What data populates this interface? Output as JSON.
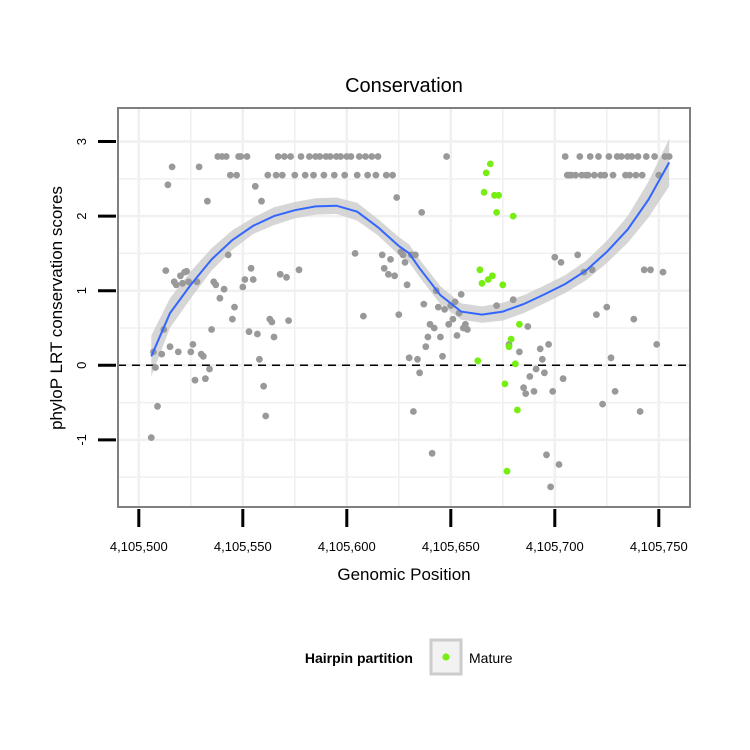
{
  "chart_data": {
    "type": "scatter",
    "title": "Conservation",
    "xlabel": "Genomic Position",
    "ylabel": "phyloP LRT conservation scores",
    "xlim": [
      4105490,
      4105765
    ],
    "ylim": [
      -1.9,
      3.45
    ],
    "xticks": [
      4105500,
      4105550,
      4105600,
      4105650,
      4105700,
      4105750
    ],
    "xtick_labels": [
      "4,105,500",
      "4,105,550",
      "4,105,600",
      "4,105,650",
      "4,105,700",
      "4,105,750"
    ],
    "yticks": [
      -1,
      0,
      1,
      2,
      3
    ],
    "ytick_labels": [
      "-1",
      "0",
      "1",
      "2",
      "3"
    ],
    "grid": true,
    "reference_line": {
      "y": 0,
      "style": "dashed"
    },
    "legend": {
      "title": "Hairpin partition",
      "placement": "bottom",
      "entries": [
        "Mature"
      ]
    },
    "colors": {
      "other_points": "#999999",
      "mature_points": "#77ee11",
      "smooth_line": "#3366ff",
      "confidence_band": "#cccccc",
      "panel_border": "#7f7f7f",
      "grid": "#f0f0f0"
    },
    "series": [
      {
        "name": "",
        "points": [
          [
            4105506,
            -0.97
          ],
          [
            4105507,
            0.18
          ],
          [
            4105508,
            -0.03
          ],
          [
            4105509,
            -0.55
          ],
          [
            4105511,
            0.15
          ],
          [
            4105512,
            0.48
          ],
          [
            4105513,
            1.27
          ],
          [
            4105514,
            2.42
          ],
          [
            4105515,
            0.25
          ],
          [
            4105516,
            2.66
          ],
          [
            4105517,
            1.12
          ],
          [
            4105518,
            1.08
          ],
          [
            4105519,
            0.18
          ],
          [
            4105520,
            1.2
          ],
          [
            4105521,
            1.1
          ],
          [
            4105522,
            1.25
          ],
          [
            4105523,
            1.26
          ],
          [
            4105524,
            1.12
          ],
          [
            4105525,
            0.18
          ],
          [
            4105526,
            0.28
          ],
          [
            4105527,
            -0.2
          ],
          [
            4105528,
            1.12
          ],
          [
            4105529,
            2.66
          ],
          [
            4105530,
            0.15
          ],
          [
            4105531,
            0.12
          ],
          [
            4105532,
            -0.18
          ],
          [
            4105533,
            2.2
          ],
          [
            4105534,
            -0.05
          ],
          [
            4105535,
            0.48
          ],
          [
            4105536,
            1.12
          ],
          [
            4105537,
            1.08
          ],
          [
            4105538,
            2.8
          ],
          [
            4105539,
            0.9
          ],
          [
            4105540,
            2.8
          ],
          [
            4105541,
            1.02
          ],
          [
            4105542,
            2.8
          ],
          [
            4105543,
            1.48
          ],
          [
            4105544,
            2.55
          ],
          [
            4105545,
            0.62
          ],
          [
            4105546,
            0.78
          ],
          [
            4105547,
            2.55
          ],
          [
            4105548,
            2.8
          ],
          [
            4105549,
            2.8
          ],
          [
            4105550,
            1.05
          ],
          [
            4105551,
            1.15
          ],
          [
            4105552,
            2.8
          ],
          [
            4105553,
            0.45
          ],
          [
            4105554,
            1.3
          ],
          [
            4105555,
            1.15
          ],
          [
            4105556,
            2.4
          ],
          [
            4105557,
            0.42
          ],
          [
            4105558,
            0.08
          ],
          [
            4105559,
            2.2
          ],
          [
            4105560,
            -0.28
          ],
          [
            4105561,
            -0.68
          ],
          [
            4105562,
            2.55
          ],
          [
            4105563,
            0.62
          ],
          [
            4105564,
            0.58
          ],
          [
            4105565,
            0.38
          ],
          [
            4105566,
            2.55
          ],
          [
            4105567,
            2.8
          ],
          [
            4105568,
            1.22
          ],
          [
            4105569,
            2.55
          ],
          [
            4105570,
            2.8
          ],
          [
            4105571,
            1.18
          ],
          [
            4105572,
            0.6
          ],
          [
            4105573,
            2.8
          ],
          [
            4105575,
            2.55
          ],
          [
            4105577,
            1.28
          ],
          [
            4105578,
            2.8
          ],
          [
            4105580,
            2.55
          ],
          [
            4105582,
            2.8
          ],
          [
            4105584,
            2.55
          ],
          [
            4105585,
            2.8
          ],
          [
            4105587,
            2.8
          ],
          [
            4105589,
            2.55
          ],
          [
            4105590,
            2.8
          ],
          [
            4105592,
            2.8
          ],
          [
            4105594,
            2.55
          ],
          [
            4105595,
            2.8
          ],
          [
            4105597,
            2.8
          ],
          [
            4105599,
            2.55
          ],
          [
            4105600,
            2.8
          ],
          [
            4105602,
            2.8
          ],
          [
            4105604,
            1.5
          ],
          [
            4105605,
            2.55
          ],
          [
            4105606,
            2.8
          ],
          [
            4105608,
            0.66
          ],
          [
            4105609,
            2.8
          ],
          [
            4105610,
            2.55
          ],
          [
            4105612,
            2.8
          ],
          [
            4105614,
            2.55
          ],
          [
            4105615,
            2.8
          ],
          [
            4105617,
            1.48
          ],
          [
            4105618,
            1.3
          ],
          [
            4105619,
            2.55
          ],
          [
            4105620,
            1.22
          ],
          [
            4105621,
            1.42
          ],
          [
            4105622,
            2.55
          ],
          [
            4105623,
            1.2
          ],
          [
            4105624,
            2.25
          ],
          [
            4105625,
            0.68
          ],
          [
            4105626,
            1.52
          ],
          [
            4105627,
            1.48
          ],
          [
            4105628,
            1.38
          ],
          [
            4105629,
            1.08
          ],
          [
            4105630,
            0.1
          ],
          [
            4105631,
            1.48
          ],
          [
            4105632,
            -0.62
          ],
          [
            4105633,
            1.48
          ],
          [
            4105634,
            0.08
          ],
          [
            4105635,
            -0.1
          ],
          [
            4105636,
            2.05
          ],
          [
            4105637,
            0.82
          ],
          [
            4105638,
            0.25
          ],
          [
            4105639,
            0.38
          ],
          [
            4105640,
            0.55
          ],
          [
            4105641,
            -1.18
          ],
          [
            4105642,
            0.5
          ],
          [
            4105643,
            1.0
          ],
          [
            4105644,
            0.78
          ],
          [
            4105645,
            0.38
          ],
          [
            4105646,
            0.12
          ],
          [
            4105647,
            0.75
          ],
          [
            4105648,
            2.8
          ],
          [
            4105649,
            0.55
          ],
          [
            4105650,
            0.8
          ],
          [
            4105651,
            0.62
          ],
          [
            4105652,
            0.85
          ],
          [
            4105653,
            0.4
          ],
          [
            4105654,
            0.7
          ],
          [
            4105655,
            0.95
          ],
          [
            4105656,
            0.5
          ],
          [
            4105657,
            0.55
          ],
          [
            4105658,
            0.48
          ],
          [
            4105672,
            0.8
          ],
          [
            4105678,
            0.28
          ],
          [
            4105680,
            0.88
          ],
          [
            4105683,
            0.18
          ],
          [
            4105685,
            -0.3
          ],
          [
            4105686,
            -0.38
          ],
          [
            4105687,
            0.52
          ],
          [
            4105688,
            -0.15
          ],
          [
            4105690,
            -0.35
          ],
          [
            4105691,
            -0.05
          ],
          [
            4105693,
            0.22
          ],
          [
            4105694,
            0.08
          ],
          [
            4105695,
            -0.1
          ],
          [
            4105696,
            -1.2
          ],
          [
            4105697,
            0.28
          ],
          [
            4105698,
            -1.63
          ],
          [
            4105699,
            -0.35
          ],
          [
            4105700,
            1.45
          ],
          [
            4105702,
            -1.33
          ],
          [
            4105703,
            1.38
          ],
          [
            4105704,
            -0.18
          ],
          [
            4105705,
            2.8
          ],
          [
            4105706,
            2.55
          ],
          [
            4105707,
            2.55
          ],
          [
            4105708,
            2.55
          ],
          [
            4105710,
            2.55
          ],
          [
            4105711,
            1.48
          ],
          [
            4105712,
            2.8
          ],
          [
            4105713,
            2.55
          ],
          [
            4105714,
            1.25
          ],
          [
            4105715,
            2.55
          ],
          [
            4105716,
            2.55
          ],
          [
            4105717,
            2.8
          ],
          [
            4105718,
            1.28
          ],
          [
            4105719,
            2.55
          ],
          [
            4105720,
            0.68
          ],
          [
            4105721,
            2.8
          ],
          [
            4105722,
            2.55
          ],
          [
            4105723,
            -0.52
          ],
          [
            4105724,
            2.55
          ],
          [
            4105725,
            0.78
          ],
          [
            4105726,
            2.8
          ],
          [
            4105727,
            0.1
          ],
          [
            4105728,
            2.55
          ],
          [
            4105729,
            -0.35
          ],
          [
            4105730,
            2.8
          ],
          [
            4105732,
            2.8
          ],
          [
            4105734,
            2.55
          ],
          [
            4105735,
            2.8
          ],
          [
            4105736,
            2.55
          ],
          [
            4105737,
            2.8
          ],
          [
            4105738,
            0.62
          ],
          [
            4105739,
            2.55
          ],
          [
            4105740,
            2.8
          ],
          [
            4105741,
            -0.62
          ],
          [
            4105742,
            2.55
          ],
          [
            4105743,
            1.28
          ],
          [
            4105744,
            2.8
          ],
          [
            4105746,
            1.28
          ],
          [
            4105748,
            2.8
          ],
          [
            4105749,
            0.28
          ],
          [
            4105750,
            2.55
          ],
          [
            4105752,
            1.25
          ],
          [
            4105753,
            2.8
          ],
          [
            4105755,
            2.8
          ]
        ]
      },
      {
        "name": "Mature",
        "points": [
          [
            4105663,
            0.06
          ],
          [
            4105664,
            1.28
          ],
          [
            4105665,
            1.1
          ],
          [
            4105666,
            2.32
          ],
          [
            4105667,
            2.58
          ],
          [
            4105668,
            1.15
          ],
          [
            4105669,
            2.7
          ],
          [
            4105670,
            1.2
          ],
          [
            4105671,
            2.28
          ],
          [
            4105672,
            2.05
          ],
          [
            4105673,
            2.28
          ],
          [
            4105675,
            1.08
          ],
          [
            4105676,
            -0.25
          ],
          [
            4105677,
            -1.42
          ],
          [
            4105678,
            0.25
          ],
          [
            4105679,
            0.35
          ],
          [
            4105680,
            2.0
          ],
          [
            4105681,
            0.02
          ],
          [
            4105682,
            -0.6
          ],
          [
            4105683,
            0.55
          ]
        ]
      }
    ],
    "smooth_fit": {
      "x": [
        4105506,
        4105515,
        4105525,
        4105535,
        4105545,
        4105555,
        4105565,
        4105575,
        4105585,
        4105595,
        4105605,
        4105615,
        4105625,
        4105630,
        4105635,
        4105645,
        4105655,
        4105665,
        4105675,
        4105685,
        4105695,
        4105705,
        4105715,
        4105725,
        4105735,
        4105745,
        4105755
      ],
      "y": [
        0.12,
        0.7,
        1.08,
        1.42,
        1.68,
        1.87,
        2.0,
        2.08,
        2.13,
        2.14,
        2.06,
        1.85,
        1.6,
        1.5,
        1.3,
        0.94,
        0.72,
        0.68,
        0.72,
        0.82,
        0.95,
        1.09,
        1.27,
        1.52,
        1.82,
        2.22,
        2.72
      ],
      "ci_lower": [
        -0.15,
        0.5,
        0.9,
        1.27,
        1.55,
        1.76,
        1.88,
        1.97,
        2.02,
        2.03,
        1.94,
        1.74,
        1.48,
        1.38,
        1.18,
        0.82,
        0.61,
        0.57,
        0.6,
        0.7,
        0.83,
        0.97,
        1.14,
        1.37,
        1.64,
        1.98,
        2.4
      ],
      "ci_upper": [
        0.4,
        0.9,
        1.26,
        1.57,
        1.81,
        1.98,
        2.12,
        2.19,
        2.24,
        2.25,
        2.18,
        1.96,
        1.72,
        1.62,
        1.42,
        1.06,
        0.83,
        0.79,
        0.84,
        0.94,
        1.07,
        1.21,
        1.4,
        1.67,
        2.0,
        2.46,
        3.04
      ]
    }
  }
}
